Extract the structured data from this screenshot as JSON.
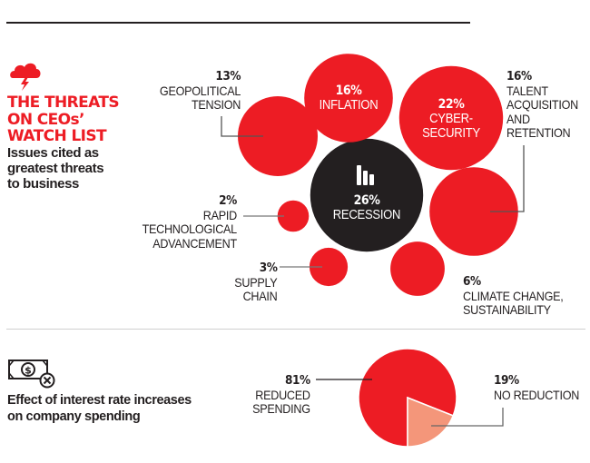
{
  "header": {
    "headline_lines": [
      "THE THREATS",
      "ON CEOs’",
      "WATCH LIST"
    ],
    "subhead_lines": [
      "Issues cited as",
      "greatest threats",
      "to business"
    ],
    "icon": "storm-cloud-icon"
  },
  "section2": {
    "icon": "money-cancel-icon",
    "title_lines": [
      "Effect of interest rate increases",
      "on company spending"
    ]
  },
  "colors": {
    "accent_red": "#ed1c24",
    "dark": "#231f20",
    "light_salmon": "#f4967a"
  },
  "chart_data": [
    {
      "type": "bubble",
      "title": "The threats on CEOs’ watch list",
      "subtitle": "Issues cited as greatest threats to business",
      "unit": "%",
      "items": [
        {
          "label": "Recession",
          "label_lines": [
            "RECESSION"
          ],
          "value": 26,
          "pct": "26%",
          "highlight": true,
          "icon": "bar-chart-icon"
        },
        {
          "label": "Cybersecurity",
          "label_lines": [
            "CYBER-",
            "SECURITY"
          ],
          "value": 22,
          "pct": "22%"
        },
        {
          "label": "Inflation",
          "label_lines": [
            "INFLATION"
          ],
          "value": 16,
          "pct": "16%"
        },
        {
          "label": "Talent acquisition and retention",
          "label_lines": [
            "TALENT",
            "ACQUISITION",
            "AND",
            "RETENTION"
          ],
          "value": 16,
          "pct": "16%"
        },
        {
          "label": "Geopolitical tension",
          "label_lines": [
            "GEOPOLITICAL",
            "TENSION"
          ],
          "value": 13,
          "pct": "13%"
        },
        {
          "label": "Climate change, sustainability",
          "label_lines": [
            "CLIMATE CHANGE,",
            "SUSTAINABILITY"
          ],
          "value": 6,
          "pct": "6%"
        },
        {
          "label": "Supply chain",
          "label_lines": [
            "SUPPLY",
            "CHAIN"
          ],
          "value": 3,
          "pct": "3%"
        },
        {
          "label": "Rapid technological advancement",
          "label_lines": [
            "RAPID",
            "TECHNOLOGICAL",
            "ADVANCEMENT"
          ],
          "value": 2,
          "pct": "2%"
        }
      ]
    },
    {
      "type": "pie",
      "title": "Effect of interest rate increases on company spending",
      "slices": [
        {
          "label": "Reduced spending",
          "label_lines": [
            "REDUCED",
            "SPENDING"
          ],
          "value": 81,
          "pct": "81%"
        },
        {
          "label": "No reduction",
          "label_lines": [
            "NO REDUCTION"
          ],
          "value": 19,
          "pct": "19%"
        }
      ]
    }
  ]
}
